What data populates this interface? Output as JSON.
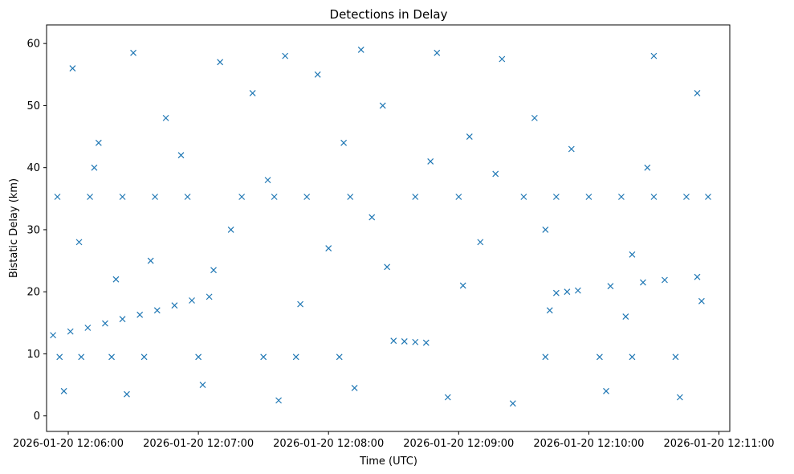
{
  "chart_data": {
    "type": "scatter",
    "title": "Detections in Delay",
    "xlabel": "Time (UTC)",
    "ylabel": "Bistatic Delay (km)",
    "marker": "x",
    "series_color": "#1f77b4",
    "grid": false,
    "xlim": [
      "2026-01-20 12:05:50",
      "2026-01-20 12:11:05"
    ],
    "ylim": [
      -2.5,
      63
    ],
    "x_ticks": [
      "2026-01-20 12:06:00",
      "2026-01-20 12:07:00",
      "2026-01-20 12:08:00",
      "2026-01-20 12:09:00",
      "2026-01-20 12:10:00",
      "2026-01-20 12:11:00"
    ],
    "y_ticks": [
      "0",
      "10",
      "20",
      "30",
      "40",
      "50",
      "60"
    ],
    "y_tick_values": [
      0,
      10,
      20,
      30,
      40,
      50,
      60
    ],
    "series": [
      {
        "x": [
          "2026-01-20 12:05:53",
          "2026-01-20 12:06:01",
          "2026-01-20 12:06:09",
          "2026-01-20 12:06:17",
          "2026-01-20 12:06:25",
          "2026-01-20 12:06:33",
          "2026-01-20 12:06:41",
          "2026-01-20 12:06:49",
          "2026-01-20 12:06:57",
          "2026-01-20 12:07:05",
          "2026-01-20 12:05:55",
          "2026-01-20 12:06:10",
          "2026-01-20 12:06:25",
          "2026-01-20 12:06:40",
          "2026-01-20 12:06:55",
          "2026-01-20 12:07:20",
          "2026-01-20 12:07:35",
          "2026-01-20 12:07:50",
          "2026-01-20 12:08:10",
          "2026-01-20 12:08:40",
          "2026-01-20 12:09:00",
          "2026-01-20 12:09:30",
          "2026-01-20 12:09:45",
          "2026-01-20 12:10:00",
          "2026-01-20 12:10:15",
          "2026-01-20 12:10:30",
          "2026-01-20 12:10:45",
          "2026-01-20 12:10:55",
          "2026-01-20 12:05:56",
          "2026-01-20 12:06:06",
          "2026-01-20 12:06:20",
          "2026-01-20 12:06:35",
          "2026-01-20 12:07:00",
          "2026-01-20 12:07:30",
          "2026-01-20 12:07:45",
          "2026-01-20 12:08:05",
          "2026-01-20 12:09:40",
          "2026-01-20 12:10:05",
          "2026-01-20 12:10:20",
          "2026-01-20 12:10:40",
          "2026-01-20 12:08:30",
          "2026-01-20 12:08:35",
          "2026-01-20 12:08:40",
          "2026-01-20 12:08:45",
          "2026-01-20 12:09:45",
          "2026-01-20 12:09:50",
          "2026-01-20 12:09:55",
          "2026-01-20 12:10:10",
          "2026-01-20 12:10:25",
          "2026-01-20 12:10:35",
          "2026-01-20 12:10:50",
          "2026-01-20 12:06:02",
          "2026-01-20 12:06:30",
          "2026-01-20 12:07:10",
          "2026-01-20 12:07:40",
          "2026-01-20 12:08:15",
          "2026-01-20 12:08:50",
          "2026-01-20 12:09:20",
          "2026-01-20 12:10:30",
          "2026-01-20 12:06:14",
          "2026-01-20 12:06:45",
          "2026-01-20 12:07:25",
          "2026-01-20 12:07:55",
          "2026-01-20 12:08:25",
          "2026-01-20 12:09:05",
          "2026-01-20 12:09:35",
          "2026-01-20 12:10:50",
          "2026-01-20 12:06:05",
          "2026-01-20 12:06:38",
          "2026-01-20 12:07:15",
          "2026-01-20 12:08:00",
          "2026-01-20 12:08:20",
          "2026-01-20 12:09:10",
          "2026-01-20 12:09:40",
          "2026-01-20 12:10:20",
          "2026-01-20 12:05:58",
          "2026-01-20 12:06:27",
          "2026-01-20 12:07:02",
          "2026-01-20 12:07:37",
          "2026-01-20 12:08:12",
          "2026-01-20 12:08:55",
          "2026-01-20 12:09:25",
          "2026-01-20 12:10:08",
          "2026-01-20 12:10:42",
          "2026-01-20 12:06:12",
          "2026-01-20 12:06:52",
          "2026-01-20 12:07:32",
          "2026-01-20 12:08:07",
          "2026-01-20 12:08:47",
          "2026-01-20 12:09:17",
          "2026-01-20 12:09:52",
          "2026-01-20 12:10:27",
          "2026-01-20 12:06:22",
          "2026-01-20 12:07:07",
          "2026-01-20 12:07:47",
          "2026-01-20 12:08:27",
          "2026-01-20 12:09:02",
          "2026-01-20 12:09:42",
          "2026-01-20 12:10:17",
          "2026-01-20 12:10:52"
        ],
        "y": [
          13.0,
          13.6,
          14.2,
          14.9,
          15.6,
          16.3,
          17.0,
          17.8,
          18.6,
          19.2,
          35.3,
          35.3,
          35.3,
          35.3,
          35.3,
          35.3,
          35.3,
          35.3,
          35.3,
          35.3,
          35.3,
          35.3,
          35.3,
          35.3,
          35.3,
          35.3,
          35.3,
          35.3,
          9.5,
          9.5,
          9.5,
          9.5,
          9.5,
          9.5,
          9.5,
          9.5,
          9.5,
          9.5,
          9.5,
          9.5,
          12.1,
          12.0,
          11.9,
          11.8,
          19.8,
          20.0,
          20.2,
          20.9,
          21.5,
          21.9,
          22.4,
          56.0,
          58.5,
          57.0,
          58.0,
          59.0,
          58.5,
          57.5,
          58.0,
          44.0,
          48.0,
          52.0,
          55.0,
          50.0,
          45.0,
          48.0,
          52.0,
          28.0,
          25.0,
          30.0,
          27.0,
          32.0,
          28.0,
          30.0,
          26.0,
          4.0,
          3.5,
          5.0,
          2.5,
          4.5,
          3.0,
          2.0,
          4.0,
          3.0,
          40.0,
          42.0,
          38.0,
          44.0,
          41.0,
          39.0,
          43.0,
          40.0,
          22.0,
          23.5,
          18.0,
          24.0,
          21.0,
          17.0,
          16.0,
          18.5
        ]
      }
    ]
  }
}
